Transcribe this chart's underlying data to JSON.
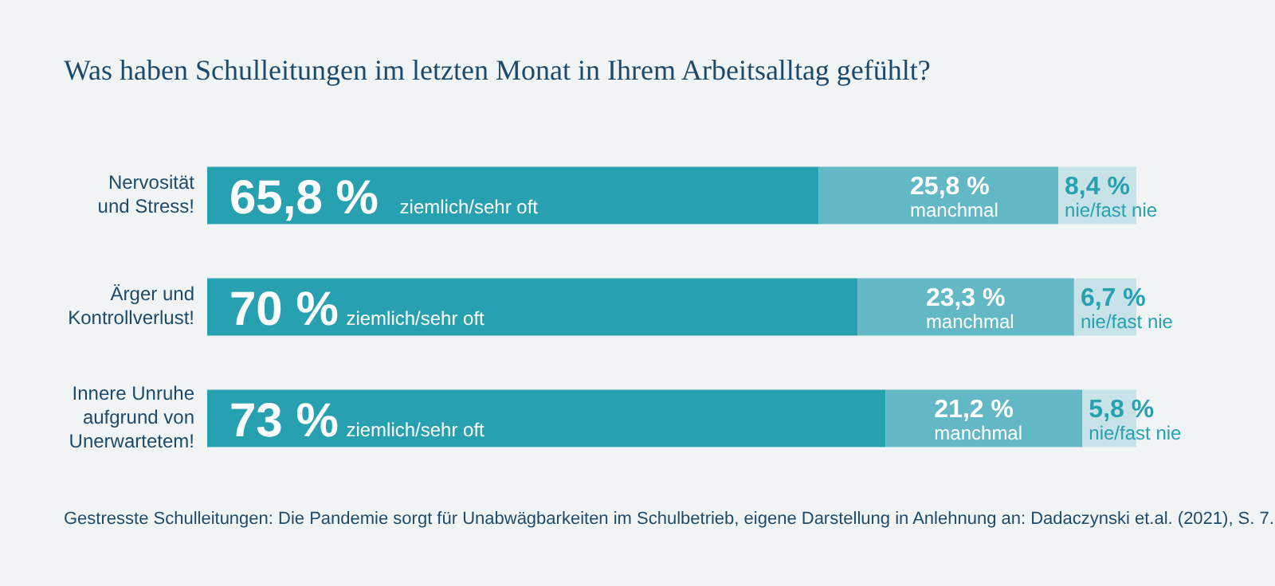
{
  "chart_data": {
    "type": "bar",
    "orientation": "horizontal",
    "stacked": true,
    "title": "Was haben Schulleitungen im letzten Monat in Ihrem Arbeitsalltag gefühlt?",
    "categories": [
      "Nervosität\nund Stress!",
      "Ärger und\nKontrollverlust!",
      "Innere Unruhe\naufgrund von\nUnerwartetem!"
    ],
    "series": [
      {
        "name": "ziemlich/sehr oft",
        "color": "#27a1b0",
        "values": [
          65.8,
          70,
          73
        ],
        "value_labels": [
          "65,8 %",
          "70 %",
          "73 %"
        ]
      },
      {
        "name": "manchmal",
        "color": "#62b8c4",
        "values": [
          25.8,
          23.3,
          21.2
        ],
        "value_labels": [
          "25,8 %",
          "23,3 %",
          "21,2 %"
        ]
      },
      {
        "name": "nie/fast nie",
        "color": "#c7e3e8",
        "values": [
          8.4,
          6.7,
          5.8
        ],
        "value_labels": [
          "8,4 %",
          "6,7 %",
          "5,8 %"
        ]
      }
    ],
    "annotations": [
      "Gestresste Schulleitungen: Die Pandemie sorgt für Unabwägbarkeiten im Schulbetrieb, eigene Darstellung in Anlehnung an: Dadaczynski et.al. (2021), S. 7."
    ]
  }
}
